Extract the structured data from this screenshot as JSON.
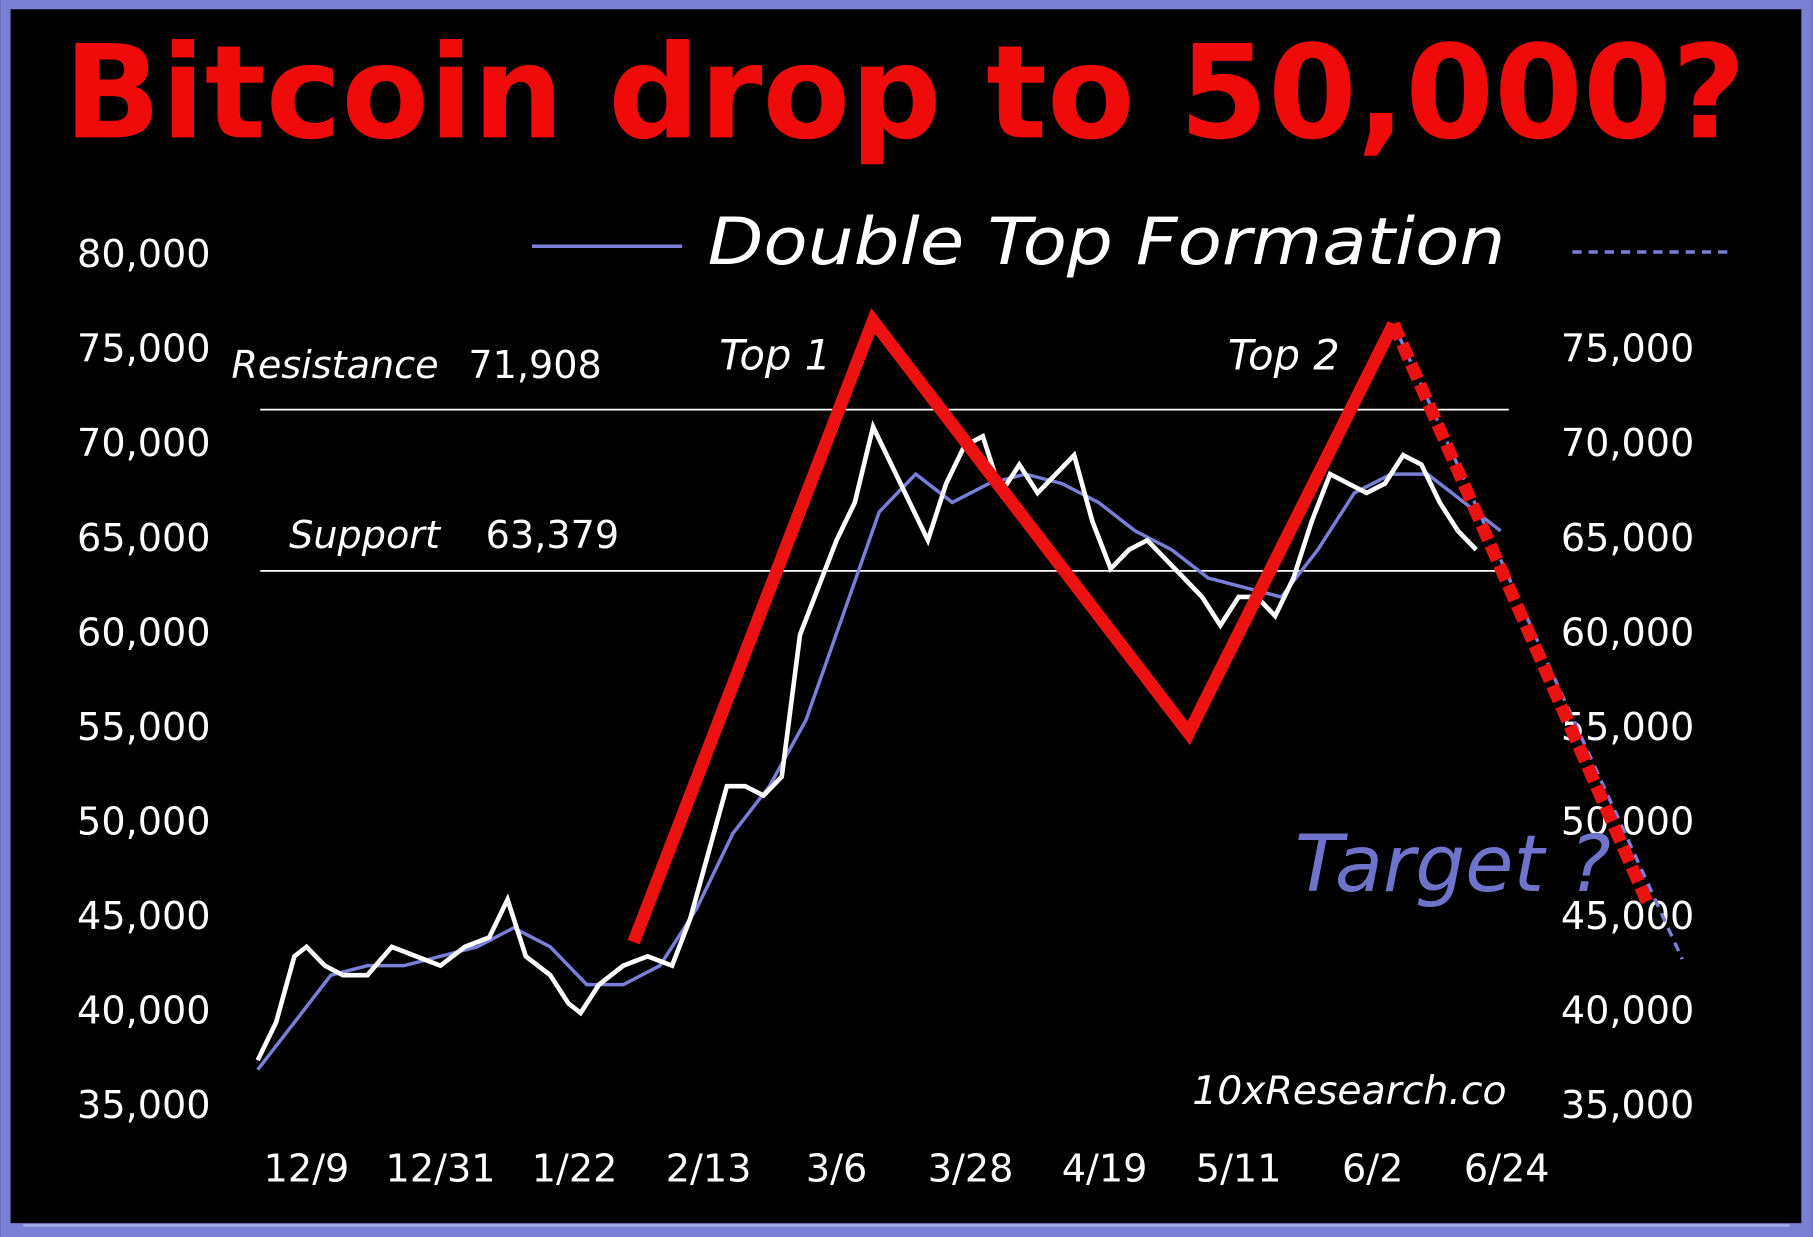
{
  "chart_data": {
    "type": "line",
    "title": "Bitcoin drop to 50,000?",
    "legend_label": "Double Top Formation",
    "source": "10xResearch.co",
    "xlim": [
      -10,
      230
    ],
    "xticks": [
      {
        "value": 0,
        "label": "12/9"
      },
      {
        "value": 22,
        "label": "12/31"
      },
      {
        "value": 44,
        "label": "1/22"
      },
      {
        "value": 66,
        "label": "2/13"
      },
      {
        "value": 87,
        "label": "3/6"
      },
      {
        "value": 109,
        "label": "3/28"
      },
      {
        "value": 131,
        "label": "4/19"
      },
      {
        "value": 153,
        "label": "5/11"
      },
      {
        "value": 175,
        "label": "6/2"
      },
      {
        "value": 197,
        "label": "6/24"
      }
    ],
    "ylim": [
      35000,
      80000
    ],
    "yticks": [
      {
        "value": 35000,
        "label": "35,000"
      },
      {
        "value": 40000,
        "label": "40,000"
      },
      {
        "value": 45000,
        "label": "45,000"
      },
      {
        "value": 50000,
        "label": "50,000"
      },
      {
        "value": 55000,
        "label": "55,000"
      },
      {
        "value": 60000,
        "label": "60,000"
      },
      {
        "value": 65000,
        "label": "65,000"
      },
      {
        "value": 70000,
        "label": "70,000"
      },
      {
        "value": 75000,
        "label": "75,000"
      },
      {
        "value": 80000,
        "label": "80,000"
      }
    ],
    "y2lim": [
      35000,
      80000
    ],
    "y2ticks": [
      {
        "value": 35000,
        "label": "35,000"
      },
      {
        "value": 40000,
        "label": "40,000"
      },
      {
        "value": 45000,
        "label": "45,000"
      },
      {
        "value": 50000,
        "label": "50,000"
      },
      {
        "value": 55000,
        "label": "55,000"
      },
      {
        "value": 60000,
        "label": "60,000"
      },
      {
        "value": 65000,
        "label": "65,000"
      },
      {
        "value": 70000,
        "label": "70,000"
      },
      {
        "value": 75000,
        "label": "75,000"
      }
    ],
    "levels": [
      {
        "label": "Resistance",
        "value": 71908,
        "value_label": "71,908"
      },
      {
        "label": "Support",
        "value": 63379,
        "value_label": "63,379"
      }
    ],
    "annotations": [
      "Top 1",
      "Top 2",
      "Target ?"
    ],
    "series": [
      {
        "color": "#7a7ed6",
        "width": 3,
        "dashed": false,
        "x": [
          -8,
          -2,
          4,
          10,
          16,
          22,
          28,
          34,
          40,
          46,
          52,
          58,
          64,
          70,
          76,
          82,
          88,
          94,
          100,
          106,
          112,
          118,
          124,
          130,
          136,
          142,
          148,
          154,
          160,
          166,
          172,
          178,
          184,
          190,
          196
        ],
        "values": [
          37000,
          39500,
          42000,
          42500,
          42500,
          43000,
          43500,
          44500,
          43500,
          41500,
          41500,
          42500,
          45500,
          49500,
          52000,
          55500,
          61000,
          66500,
          68500,
          67000,
          68000,
          68500,
          68000,
          67000,
          65500,
          64500,
          63000,
          62500,
          62000,
          64500,
          67500,
          68500,
          68500,
          67000,
          65500
        ]
      },
      {
        "color": "#ffffff",
        "width": 4,
        "dashed": false,
        "x": [
          -8,
          -5,
          -2,
          0,
          3,
          6,
          10,
          14,
          18,
          22,
          26,
          30,
          33,
          36,
          40,
          43,
          45,
          48,
          52,
          56,
          60,
          63,
          66,
          69,
          72,
          75,
          78,
          81,
          84,
          87,
          90,
          93,
          96,
          99,
          102,
          105,
          108,
          111,
          114,
          117,
          120,
          123,
          126,
          129,
          132,
          135,
          138,
          141,
          144,
          147,
          150,
          153,
          156,
          159,
          162,
          165,
          168,
          171,
          174,
          177,
          180,
          183,
          186,
          189,
          192
        ],
        "values": [
          37500,
          39500,
          43000,
          43500,
          42500,
          42000,
          42000,
          43500,
          43000,
          42500,
          43500,
          44000,
          46000,
          43000,
          42000,
          40500,
          40000,
          41500,
          42500,
          43000,
          42500,
          45000,
          48500,
          52000,
          52000,
          51500,
          52500,
          60000,
          62500,
          65000,
          67000,
          71000,
          69000,
          67000,
          65000,
          68000,
          70000,
          70500,
          67500,
          69000,
          67500,
          68500,
          69500,
          66000,
          63500,
          64500,
          65000,
          64000,
          63000,
          62000,
          60500,
          62000,
          62000,
          61000,
          63000,
          66000,
          68500,
          68000,
          67500,
          68000,
          69500,
          69000,
          67000,
          65500,
          64500
        ]
      },
      {
        "color": "#7a7ed6",
        "width": 3,
        "dashed": true,
        "x": [
          178.4,
          225.8
        ],
        "values": [
          76450,
          42850
        ]
      },
      {
        "color": "#ee1111",
        "width": 11,
        "dashed": false,
        "x": [
          53.7,
          93,
          144.8,
          178.4
        ],
        "values": [
          43750,
          76600,
          54800,
          76450
        ]
      },
      {
        "color": "#ee1111",
        "width": 11,
        "dashed": true,
        "x": [
          178.4,
          220
        ],
        "values": [
          76450,
          45900
        ]
      }
    ]
  }
}
